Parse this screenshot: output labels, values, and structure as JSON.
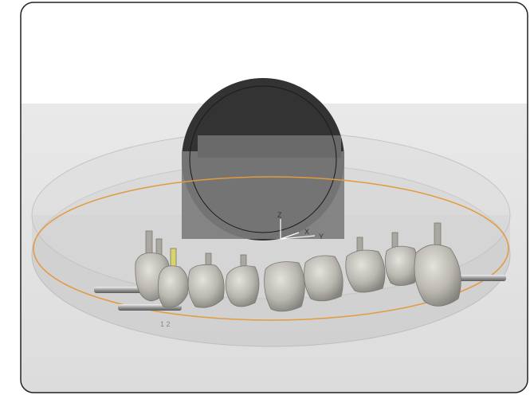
{
  "viewport": {
    "axis_labels": {
      "z": "Z",
      "x": "X",
      "y": "Y"
    },
    "tooth_label": "1 2"
  }
}
